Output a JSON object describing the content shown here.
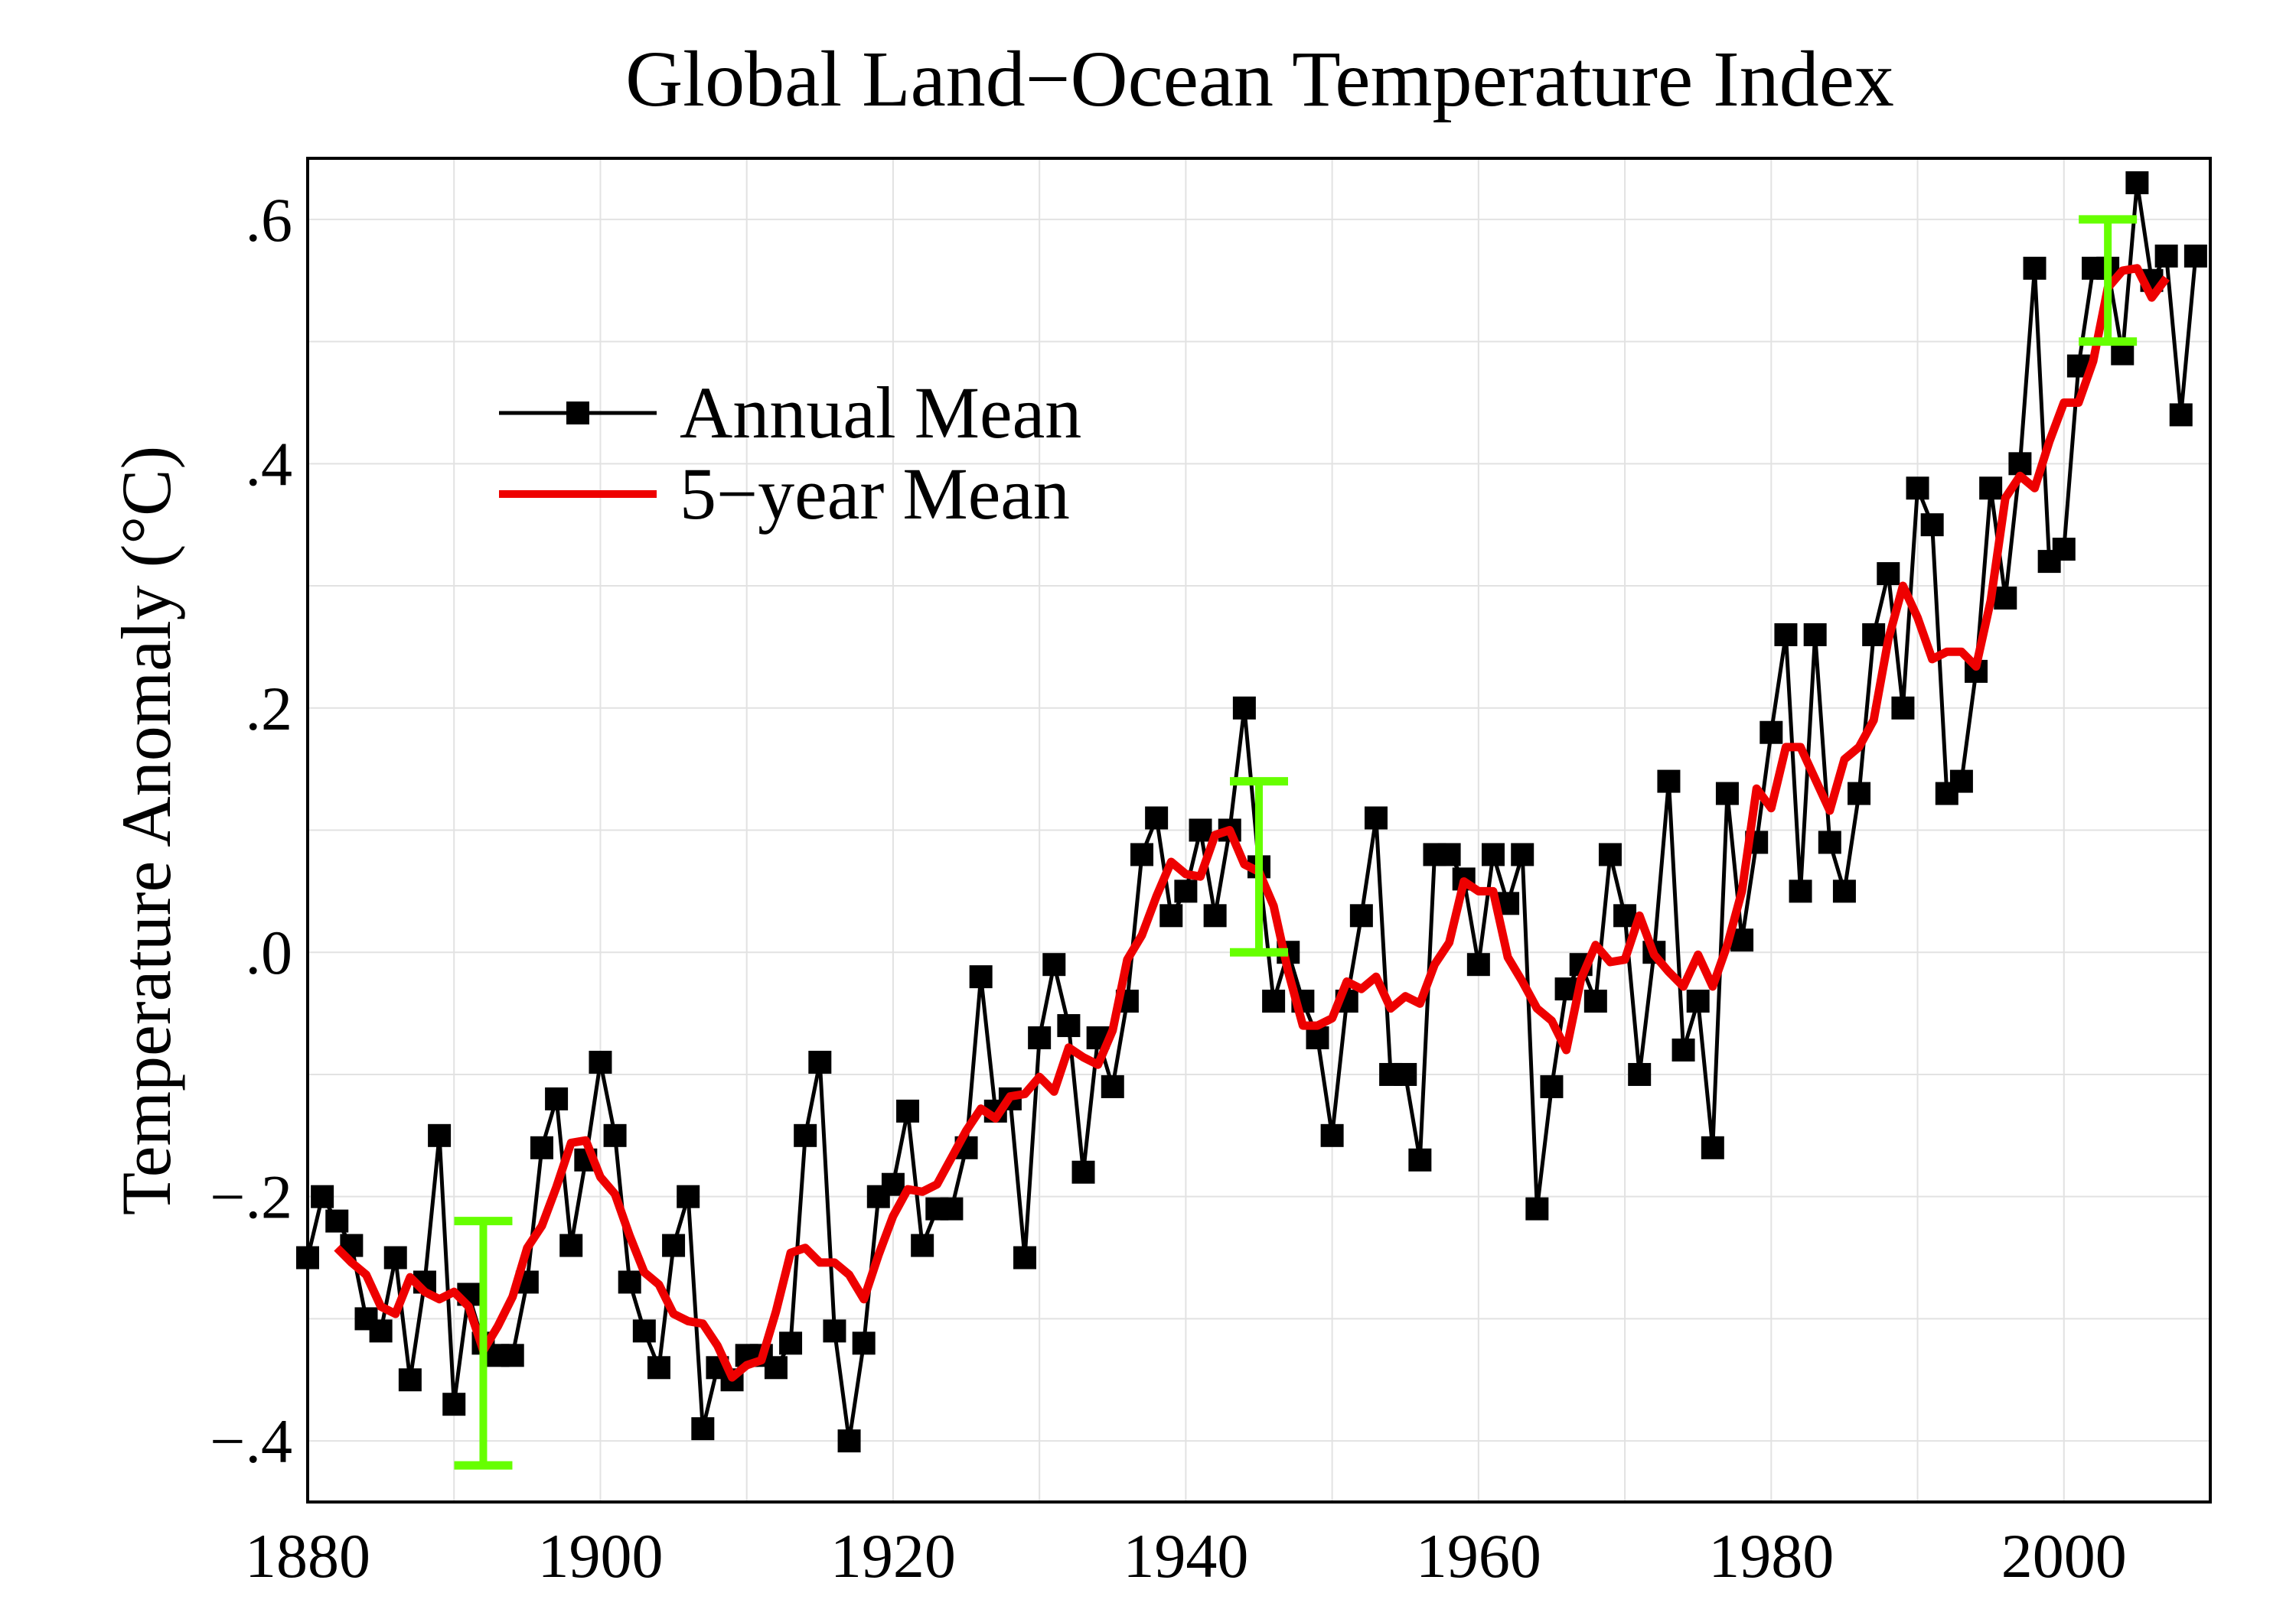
{
  "chart_data": {
    "type": "line",
    "title": "Global Land−Ocean Temperature Index",
    "xlabel": "",
    "ylabel": "Temperature Anomaly (°C)",
    "xlim": [
      1880,
      2010
    ],
    "ylim": [
      -0.45,
      0.65
    ],
    "grid": true,
    "legend_position": "upper-left",
    "x_ticks": [
      1880,
      1900,
      1920,
      1940,
      1960,
      1980,
      2000
    ],
    "x_tick_labels": [
      "1880",
      "1900",
      "1920",
      "1940",
      "1960",
      "1980",
      "2000"
    ],
    "y_ticks": [
      0.6,
      0.4,
      0.2,
      0.0,
      -0.2,
      -0.4
    ],
    "y_tick_labels": [
      ".6",
      ".4",
      ".2",
      ".0",
      "−.2",
      "−.4"
    ],
    "series": [
      {
        "name": "Annual Mean",
        "color": "#000000",
        "marker": "square",
        "x_start": 1880,
        "values": [
          -0.25,
          -0.2,
          -0.22,
          -0.24,
          -0.3,
          -0.31,
          -0.25,
          -0.35,
          -0.27,
          -0.15,
          -0.37,
          -0.28,
          -0.32,
          -0.33,
          -0.33,
          -0.27,
          -0.16,
          -0.12,
          -0.24,
          -0.17,
          -0.09,
          -0.15,
          -0.27,
          -0.31,
          -0.34,
          -0.24,
          -0.2,
          -0.39,
          -0.34,
          -0.35,
          -0.33,
          -0.33,
          -0.34,
          -0.32,
          -0.15,
          -0.09,
          -0.31,
          -0.4,
          -0.32,
          -0.2,
          -0.19,
          -0.13,
          -0.24,
          -0.21,
          -0.21,
          -0.16,
          -0.02,
          -0.13,
          -0.12,
          -0.25,
          -0.07,
          -0.01,
          -0.06,
          -0.18,
          -0.07,
          -0.11,
          -0.04,
          0.08,
          0.11,
          0.03,
          0.05,
          0.1,
          0.03,
          0.1,
          0.2,
          0.07,
          -0.04,
          0.0,
          -0.04,
          -0.07,
          -0.15,
          -0.04,
          0.03,
          0.11,
          -0.1,
          -0.1,
          -0.17,
          0.08,
          0.08,
          0.06,
          -0.01,
          0.08,
          0.04,
          0.08,
          -0.21,
          -0.11,
          -0.03,
          -0.01,
          -0.04,
          0.08,
          0.03,
          -0.1,
          0.0,
          0.14,
          -0.08,
          -0.04,
          -0.16,
          0.13,
          0.01,
          0.09,
          0.18,
          0.26,
          0.05,
          0.26,
          0.09,
          0.05,
          0.13,
          0.26,
          0.31,
          0.2,
          0.38,
          0.35,
          0.13,
          0.14,
          0.23,
          0.38,
          0.29,
          0.4,
          0.56,
          0.32,
          0.33,
          0.48,
          0.56,
          0.56,
          0.49,
          0.63,
          0.55,
          0.57,
          0.44,
          0.57
        ]
      },
      {
        "name": "5−year Mean",
        "color": "#ee0000",
        "window": 5
      }
    ],
    "error_bars": [
      {
        "x": 1892,
        "low": -0.42,
        "high": -0.22
      },
      {
        "x": 1945,
        "low": 0.0,
        "high": 0.14
      },
      {
        "x": 2003,
        "low": 0.5,
        "high": 0.6
      }
    ],
    "error_bar_color": "#66ff00"
  }
}
